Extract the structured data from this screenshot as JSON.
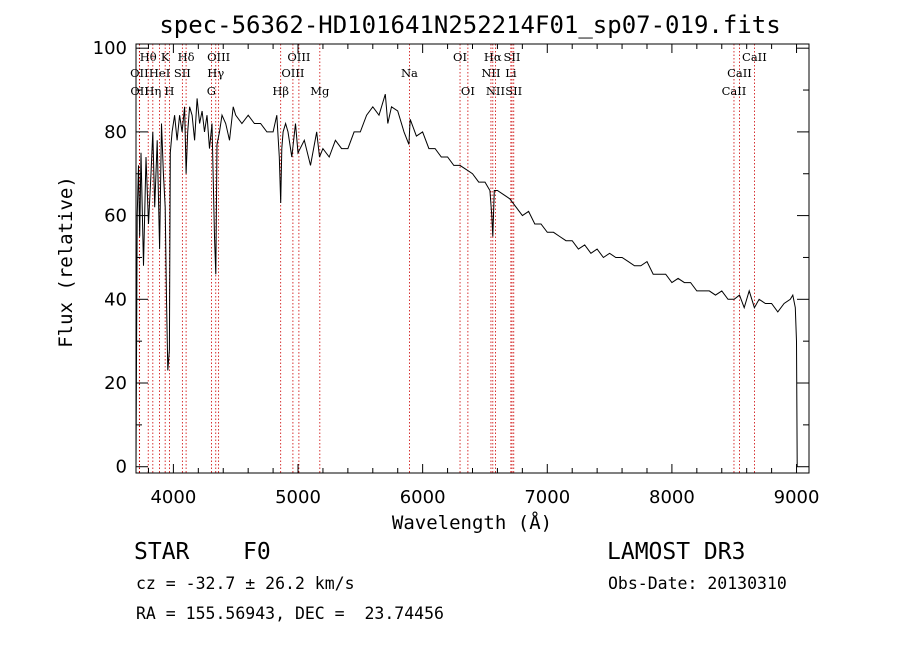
{
  "chart_data": {
    "type": "line",
    "title": "spec-56362-HD101641N252214F01_sp07-019.fits",
    "xlabel": "Wavelength (Å)",
    "ylabel": "Flux (relative)",
    "xlim": [
      3700,
      9100
    ],
    "ylim": [
      -1.5,
      101
    ],
    "xticks": [
      4000,
      5000,
      6000,
      7000,
      8000,
      9000
    ],
    "yticks": [
      0,
      20,
      40,
      60,
      80,
      100
    ],
    "series": [
      {
        "name": "spectrum",
        "x": [
          3700,
          3710,
          3720,
          3730,
          3740,
          3760,
          3780,
          3800,
          3820,
          3835,
          3850,
          3870,
          3889,
          3905,
          3920,
          3934,
          3945,
          3955,
          3968,
          3975,
          3990,
          4010,
          4030,
          4050,
          4070,
          4090,
          4102,
          4115,
          4130,
          4150,
          4170,
          4190,
          4210,
          4230,
          4250,
          4270,
          4290,
          4310,
          4330,
          4340,
          4350,
          4370,
          4390,
          4420,
          4450,
          4480,
          4500,
          4550,
          4600,
          4650,
          4700,
          4750,
          4800,
          4830,
          4850,
          4861,
          4870,
          4880,
          4900,
          4920,
          4950,
          4980,
          5000,
          5050,
          5100,
          5150,
          5172,
          5200,
          5250,
          5300,
          5350,
          5400,
          5450,
          5500,
          5550,
          5600,
          5650,
          5700,
          5720,
          5750,
          5800,
          5850,
          5890,
          5900,
          5950,
          6000,
          6050,
          6100,
          6150,
          6200,
          6250,
          6300,
          6350,
          6400,
          6450,
          6500,
          6540,
          6555,
          6563,
          6575,
          6600,
          6650,
          6700,
          6750,
          6800,
          6850,
          6900,
          6950,
          7000,
          7050,
          7100,
          7150,
          7200,
          7250,
          7300,
          7350,
          7400,
          7450,
          7500,
          7550,
          7600,
          7650,
          7700,
          7750,
          7800,
          7850,
          7900,
          7950,
          8000,
          8050,
          8100,
          8150,
          8200,
          8250,
          8300,
          8350,
          8400,
          8450,
          8500,
          8542,
          8580,
          8620,
          8662,
          8700,
          8750,
          8800,
          8850,
          8900,
          8950,
          8970,
          8990,
          9000,
          9005
        ],
        "values": [
          0,
          60,
          72,
          55,
          75,
          48,
          74,
          58,
          70,
          80,
          62,
          78,
          52,
          82,
          70,
          62,
          40,
          23,
          28,
          75,
          80,
          84,
          78,
          84,
          80,
          86,
          70,
          80,
          86,
          84,
          78,
          88,
          82,
          85,
          80,
          84,
          76,
          82,
          55,
          46,
          77,
          80,
          84,
          82,
          78,
          86,
          84,
          82,
          84,
          82,
          82,
          80,
          80,
          84,
          74,
          63,
          76,
          80,
          82,
          80,
          74,
          82,
          75,
          78,
          72,
          80,
          74,
          76,
          74,
          78,
          76,
          76,
          80,
          80,
          84,
          86,
          84,
          89,
          82,
          86,
          85,
          80,
          77,
          83,
          79,
          80,
          76,
          76,
          74,
          74,
          72,
          72,
          71,
          70,
          68,
          68,
          66,
          60,
          55,
          66,
          66,
          65,
          64,
          62,
          60,
          61,
          58,
          58,
          56,
          56,
          55,
          54,
          54,
          52,
          53,
          51,
          52,
          50,
          51,
          50,
          50,
          49,
          48,
          48,
          49,
          46,
          46,
          46,
          44,
          45,
          44,
          44,
          42,
          42,
          42,
          41,
          42,
          40,
          40,
          41,
          38,
          42,
          38,
          40,
          39,
          39,
          37,
          39,
          40,
          41,
          38,
          30,
          0
        ]
      }
    ],
    "lines": [
      {
        "label": "Hθ",
        "x": 3798,
        "row": 0
      },
      {
        "label": "OII",
        "x": 3727,
        "row": 1
      },
      {
        "label": "OII",
        "x": 3729,
        "row": 2
      },
      {
        "label": "HeI",
        "x": 3889,
        "row": 1
      },
      {
        "label": "Hη",
        "x": 3835,
        "row": 2
      },
      {
        "label": "K",
        "x": 3934,
        "row": 0
      },
      {
        "label": "SII",
        "x": 4072,
        "row": 1
      },
      {
        "label": "H",
        "x": 3968,
        "row": 2
      },
      {
        "label": "Hδ",
        "x": 4102,
        "row": 0
      },
      {
        "label": "OIII",
        "x": 4363,
        "row": 0
      },
      {
        "label": "Hγ",
        "x": 4340,
        "row": 1
      },
      {
        "label": "G",
        "x": 4305,
        "row": 2
      },
      {
        "label": "Hβ",
        "x": 4861,
        "row": 2
      },
      {
        "label": "OIII",
        "x": 5007,
        "row": 0
      },
      {
        "label": "OIII",
        "x": 4959,
        "row": 1
      },
      {
        "label": "Mg",
        "x": 5175,
        "row": 2
      },
      {
        "label": "Na",
        "x": 5894,
        "row": 1
      },
      {
        "label": "OI",
        "x": 6300,
        "row": 0
      },
      {
        "label": "OI",
        "x": 6363,
        "row": 2
      },
      {
        "label": "Hα",
        "x": 6563,
        "row": 0
      },
      {
        "label": "NII",
        "x": 6548,
        "row": 1
      },
      {
        "label": "NII",
        "x": 6584,
        "row": 2
      },
      {
        "label": "SII",
        "x": 6717,
        "row": 0
      },
      {
        "label": "Li",
        "x": 6708,
        "row": 1
      },
      {
        "label": "SII",
        "x": 6731,
        "row": 2
      },
      {
        "label": "CaII",
        "x": 8662,
        "row": 0
      },
      {
        "label": "CaII",
        "x": 8542,
        "row": 1
      },
      {
        "label": "CaII",
        "x": 8498,
        "row": 2
      }
    ]
  },
  "info": {
    "class": "STAR",
    "subclass": "F0",
    "survey": "LAMOST DR3",
    "cz": "cz = -32.7 ± 26.2 km/s",
    "obsdate": "Obs-Date: 20130310",
    "radec": "RA = 155.56943, DEC =  23.74456"
  },
  "colors": {
    "line": "#000000",
    "marker": "#cc0000"
  }
}
